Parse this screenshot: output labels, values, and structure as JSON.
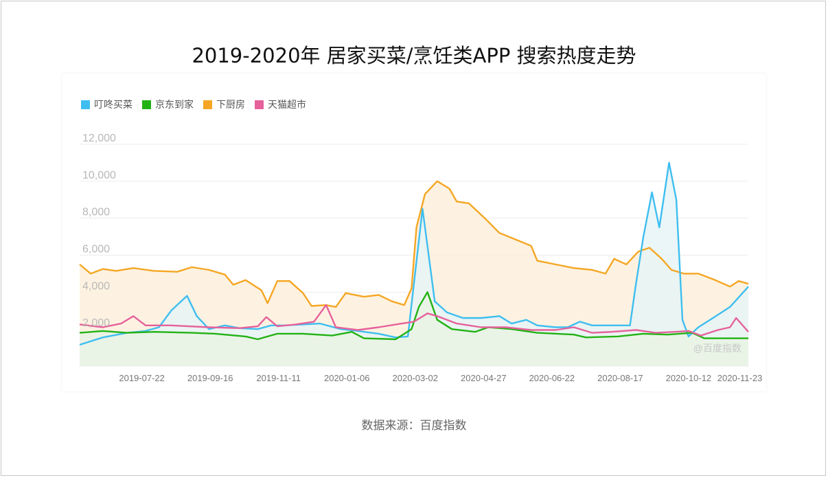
{
  "title": "2019-2020年 居家买菜/烹饪类APP 搜索热度走势",
  "source": "数据来源：百度指数",
  "watermark": "@百度指数",
  "chart_data": {
    "type": "area",
    "x_start": "2019-06-01",
    "x_end": "2020-11-30",
    "xticks": [
      "2019-07-22",
      "2019-09-16",
      "2019-11-11",
      "2020-01-06",
      "2020-03-02",
      "2020-04-27",
      "2020-06-22",
      "2020-08-17",
      "2020-10-12",
      "2020-11-23"
    ],
    "yticks": [
      "12,000",
      "10,000",
      "8,000",
      "6,000",
      "4,000",
      "2,000"
    ],
    "ylim": [
      0,
      12000
    ],
    "grid": true,
    "legend": "top-left",
    "series": [
      {
        "name": "下厨房",
        "color": "#f5a623",
        "fill": "#fdf0dc",
        "points": [
          [
            "2019-06-01",
            5500
          ],
          [
            "2019-06-10",
            5000
          ],
          [
            "2019-06-20",
            5250
          ],
          [
            "2019-07-01",
            5150
          ],
          [
            "2019-07-15",
            5300
          ],
          [
            "2019-08-01",
            5150
          ],
          [
            "2019-08-20",
            5100
          ],
          [
            "2019-09-01",
            5350
          ],
          [
            "2019-09-15",
            5200
          ],
          [
            "2019-09-28",
            4950
          ],
          [
            "2019-10-05",
            4400
          ],
          [
            "2019-10-15",
            4650
          ],
          [
            "2019-10-28",
            4100
          ],
          [
            "2019-11-02",
            3400
          ],
          [
            "2019-11-10",
            4600
          ],
          [
            "2019-11-20",
            4600
          ],
          [
            "2019-12-01",
            3950
          ],
          [
            "2019-12-08",
            3250
          ],
          [
            "2019-12-20",
            3300
          ],
          [
            "2019-12-28",
            3200
          ],
          [
            "2020-01-05",
            3950
          ],
          [
            "2020-01-20",
            3750
          ],
          [
            "2020-02-01",
            3850
          ],
          [
            "2020-02-12",
            3500
          ],
          [
            "2020-02-22",
            3300
          ],
          [
            "2020-02-28",
            4200
          ],
          [
            "2020-03-03",
            7500
          ],
          [
            "2020-03-10",
            9300
          ],
          [
            "2020-03-20",
            10000
          ],
          [
            "2020-03-30",
            9600
          ],
          [
            "2020-04-05",
            8900
          ],
          [
            "2020-04-15",
            8800
          ],
          [
            "2020-04-28",
            8000
          ],
          [
            "2020-05-10",
            7200
          ],
          [
            "2020-05-25",
            6800
          ],
          [
            "2020-06-05",
            6500
          ],
          [
            "2020-06-10",
            5700
          ],
          [
            "2020-06-25",
            5500
          ],
          [
            "2020-07-10",
            5300
          ],
          [
            "2020-07-25",
            5200
          ],
          [
            "2020-08-05",
            5000
          ],
          [
            "2020-08-12",
            5800
          ],
          [
            "2020-08-22",
            5500
          ],
          [
            "2020-09-01",
            6200
          ],
          [
            "2020-09-10",
            6400
          ],
          [
            "2020-09-20",
            5800
          ],
          [
            "2020-09-28",
            5200
          ],
          [
            "2020-10-08",
            5000
          ],
          [
            "2020-10-20",
            5000
          ],
          [
            "2020-11-01",
            4700
          ],
          [
            "2020-11-15",
            4300
          ],
          [
            "2020-11-22",
            4600
          ],
          [
            "2020-11-30",
            4450
          ]
        ]
      },
      {
        "name": "叮咚买菜",
        "color": "#3ebef0",
        "fill": "#e6f5f6",
        "points": [
          [
            "2019-06-01",
            1150
          ],
          [
            "2019-06-20",
            1550
          ],
          [
            "2019-07-10",
            1800
          ],
          [
            "2019-07-25",
            1900
          ],
          [
            "2019-08-05",
            2100
          ],
          [
            "2019-08-15",
            3000
          ],
          [
            "2019-08-28",
            3800
          ],
          [
            "2019-09-05",
            2700
          ],
          [
            "2019-09-15",
            2000
          ],
          [
            "2019-09-28",
            2200
          ],
          [
            "2019-10-10",
            2050
          ],
          [
            "2019-10-25",
            2000
          ],
          [
            "2019-11-05",
            2200
          ],
          [
            "2019-11-15",
            2200
          ],
          [
            "2019-12-01",
            2250
          ],
          [
            "2019-12-15",
            2300
          ],
          [
            "2020-01-01",
            2000
          ],
          [
            "2020-01-15",
            1900
          ],
          [
            "2020-02-01",
            1750
          ],
          [
            "2020-02-15",
            1550
          ],
          [
            "2020-02-25",
            1600
          ],
          [
            "2020-03-01",
            4500
          ],
          [
            "2020-03-08",
            8500
          ],
          [
            "2020-03-12",
            6500
          ],
          [
            "2020-03-18",
            3500
          ],
          [
            "2020-03-28",
            2900
          ],
          [
            "2020-04-10",
            2600
          ],
          [
            "2020-04-25",
            2600
          ],
          [
            "2020-05-10",
            2700
          ],
          [
            "2020-05-20",
            2300
          ],
          [
            "2020-06-01",
            2500
          ],
          [
            "2020-06-10",
            2200
          ],
          [
            "2020-06-25",
            2100
          ],
          [
            "2020-07-05",
            2100
          ],
          [
            "2020-07-15",
            2400
          ],
          [
            "2020-07-25",
            2200
          ],
          [
            "2020-08-10",
            2200
          ],
          [
            "2020-08-25",
            2200
          ],
          [
            "2020-08-30",
            4500
          ],
          [
            "2020-09-05",
            7000
          ],
          [
            "2020-09-12",
            9400
          ],
          [
            "2020-09-18",
            7500
          ],
          [
            "2020-09-26",
            11000
          ],
          [
            "2020-10-02",
            9000
          ],
          [
            "2020-10-07",
            2500
          ],
          [
            "2020-10-12",
            1600
          ],
          [
            "2020-10-20",
            2100
          ],
          [
            "2020-11-01",
            2600
          ],
          [
            "2020-11-15",
            3200
          ],
          [
            "2020-11-30",
            4300
          ]
        ]
      },
      {
        "name": "京东到家",
        "color": "#22b214",
        "fill": "#e9f3e4",
        "points": [
          [
            "2019-06-01",
            1800
          ],
          [
            "2019-06-20",
            1900
          ],
          [
            "2019-07-10",
            1800
          ],
          [
            "2019-08-01",
            1850
          ],
          [
            "2019-09-01",
            1800
          ],
          [
            "2019-09-20",
            1750
          ],
          [
            "2019-10-15",
            1600
          ],
          [
            "2019-10-25",
            1450
          ],
          [
            "2019-11-10",
            1750
          ],
          [
            "2019-12-01",
            1750
          ],
          [
            "2019-12-25",
            1650
          ],
          [
            "2020-01-10",
            1850
          ],
          [
            "2020-01-20",
            1500
          ],
          [
            "2020-02-15",
            1450
          ],
          [
            "2020-02-28",
            2000
          ],
          [
            "2020-03-05",
            3200
          ],
          [
            "2020-03-12",
            4000
          ],
          [
            "2020-03-20",
            2500
          ],
          [
            "2020-04-01",
            2000
          ],
          [
            "2020-04-20",
            1850
          ],
          [
            "2020-05-01",
            2100
          ],
          [
            "2020-05-20",
            2000
          ],
          [
            "2020-06-10",
            1800
          ],
          [
            "2020-07-10",
            1700
          ],
          [
            "2020-07-20",
            1550
          ],
          [
            "2020-08-15",
            1600
          ],
          [
            "2020-09-05",
            1750
          ],
          [
            "2020-09-25",
            1700
          ],
          [
            "2020-10-15",
            1800
          ],
          [
            "2020-10-25",
            1500
          ],
          [
            "2020-11-10",
            1500
          ],
          [
            "2020-11-30",
            1500
          ]
        ]
      },
      {
        "name": "天猫超市",
        "color": "#e6619b",
        "fill": "none",
        "points": [
          [
            "2019-06-01",
            2250
          ],
          [
            "2019-06-20",
            2100
          ],
          [
            "2019-07-05",
            2300
          ],
          [
            "2019-07-15",
            2700
          ],
          [
            "2019-07-25",
            2200
          ],
          [
            "2019-08-15",
            2200
          ],
          [
            "2019-09-15",
            2100
          ],
          [
            "2019-10-10",
            2050
          ],
          [
            "2019-10-25",
            2150
          ],
          [
            "2019-11-01",
            2650
          ],
          [
            "2019-11-10",
            2150
          ],
          [
            "2019-11-25",
            2250
          ],
          [
            "2019-12-10",
            2400
          ],
          [
            "2019-12-20",
            3300
          ],
          [
            "2019-12-28",
            2100
          ],
          [
            "2020-01-15",
            1950
          ],
          [
            "2020-02-01",
            2100
          ],
          [
            "2020-02-20",
            2300
          ],
          [
            "2020-03-01",
            2400
          ],
          [
            "2020-03-12",
            2850
          ],
          [
            "2020-03-20",
            2700
          ],
          [
            "2020-04-05",
            2300
          ],
          [
            "2020-04-25",
            2100
          ],
          [
            "2020-05-15",
            2100
          ],
          [
            "2020-06-05",
            1950
          ],
          [
            "2020-06-25",
            1950
          ],
          [
            "2020-07-10",
            2100
          ],
          [
            "2020-07-25",
            1800
          ],
          [
            "2020-08-10",
            1850
          ],
          [
            "2020-08-30",
            1950
          ],
          [
            "2020-09-15",
            1800
          ],
          [
            "2020-10-01",
            1850
          ],
          [
            "2020-10-12",
            1900
          ],
          [
            "2020-10-22",
            1650
          ],
          [
            "2020-11-05",
            1950
          ],
          [
            "2020-11-15",
            2100
          ],
          [
            "2020-11-20",
            2600
          ],
          [
            "2020-11-30",
            1850
          ]
        ]
      }
    ]
  }
}
